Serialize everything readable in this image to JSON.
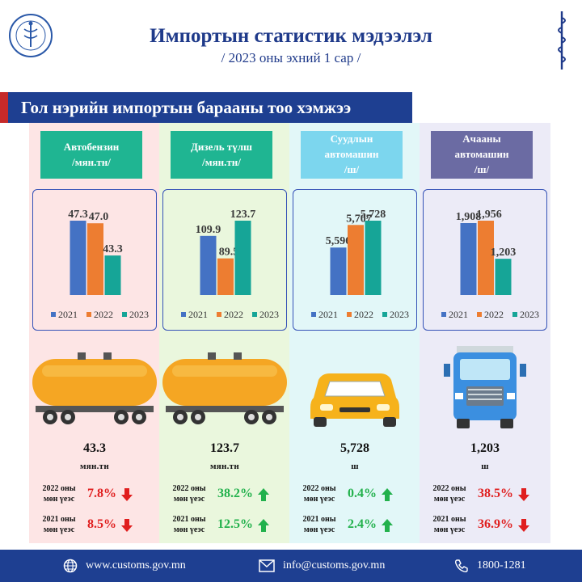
{
  "header": {
    "title": "Импортын статистик мэдээлэл",
    "subtitle": "/ 2023 оны эхний 1 сар /"
  },
  "section_title": "Гол нэрийн импортын барааны тоо хэмжээ",
  "chart_data": [
    {
      "type": "bar",
      "title": "Автобензин /мян.тн/",
      "categories": [
        "2021",
        "2022",
        "2023"
      ],
      "values": [
        47.3,
        47.0,
        43.3
      ],
      "value_labels": [
        "47.3",
        "47.0",
        "43.3"
      ],
      "colors": [
        "#4472c4",
        "#ed7d31",
        "#16a597"
      ],
      "legend": [
        "2021",
        "2022",
        "2023"
      ],
      "legend_position": "bottom"
    },
    {
      "type": "bar",
      "title": "Дизель түлш /мян.тн/",
      "categories": [
        "2021",
        "2022",
        "2023"
      ],
      "values": [
        109.9,
        89.5,
        123.7
      ],
      "value_labels": [
        "109.9",
        "89.5",
        "123.7"
      ],
      "colors": [
        "#4472c4",
        "#ed7d31",
        "#16a597"
      ],
      "legend": [
        "2021",
        "2022",
        "2023"
      ],
      "legend_position": "bottom"
    },
    {
      "type": "bar",
      "title": "Суудлын автомашин /ш/",
      "categories": [
        "2021",
        "2022",
        "2023"
      ],
      "values": [
        5596,
        5707,
        5728
      ],
      "value_labels": [
        "5,596",
        "5,707",
        "5,728"
      ],
      "colors": [
        "#4472c4",
        "#ed7d31",
        "#16a597"
      ],
      "legend": [
        "2021",
        "2022",
        "2023"
      ],
      "legend_position": "bottom"
    },
    {
      "type": "bar",
      "title": "Ачааны автомашин /ш/",
      "categories": [
        "2021",
        "2022",
        "2023"
      ],
      "values": [
        1908,
        1956,
        1203
      ],
      "value_labels": [
        "1,908",
        "1,956",
        "1,203"
      ],
      "colors": [
        "#4472c4",
        "#ed7d31",
        "#16a597"
      ],
      "legend": [
        "2021",
        "2022",
        "2023"
      ],
      "legend_position": "bottom"
    }
  ],
  "products": [
    {
      "name_line1": "Автобензин",
      "name_line2": "/мян.тн/",
      "badge_color": "#1fb592",
      "vehicle_icon": "fuel-tanker-icon",
      "summary_value": "43.3",
      "summary_unit": "мян.тн",
      "cmp": [
        {
          "label_line1": "2022 оны",
          "label_line2": "мөн үеэс",
          "value": "7.8%",
          "direction": "down",
          "color": "#e01e1e"
        },
        {
          "label_line1": "2021 оны",
          "label_line2": "мөн үеэс",
          "value": "8.5%",
          "direction": "down",
          "color": "#e01e1e"
        }
      ]
    },
    {
      "name_line1": "Дизель түлш",
      "name_line2": "/мян.тн/",
      "badge_color": "#1fb592",
      "vehicle_icon": "fuel-tanker-icon",
      "summary_value": "123.7",
      "summary_unit": "мян.тн",
      "cmp": [
        {
          "label_line1": "2022 оны",
          "label_line2": "мөн үеэс",
          "value": "38.2%",
          "direction": "up",
          "color": "#22b14c"
        },
        {
          "label_line1": "2021 оны",
          "label_line2": "мөн үеэс",
          "value": "12.5%",
          "direction": "up",
          "color": "#22b14c"
        }
      ]
    },
    {
      "name_line1": "Суудлын",
      "name_line2": "автомашин",
      "name_line3": "/ш/",
      "badge_color": "#7cd6ee",
      "vehicle_icon": "car-icon",
      "summary_value": "5,728",
      "summary_unit": "ш",
      "cmp": [
        {
          "label_line1": "2022 оны",
          "label_line2": "мөн үеэс",
          "value": "0.4%",
          "direction": "up",
          "color": "#22b14c"
        },
        {
          "label_line1": "2021 оны",
          "label_line2": "мөн үеэс",
          "value": "2.4%",
          "direction": "up",
          "color": "#22b14c"
        }
      ]
    },
    {
      "name_line1": "Ачааны",
      "name_line2": "автомашин",
      "name_line3": "/ш/",
      "badge_color": "#6b6ba3",
      "vehicle_icon": "truck-icon",
      "summary_value": "1,203",
      "summary_unit": "ш",
      "cmp": [
        {
          "label_line1": "2022 оны",
          "label_line2": "мөн үеэс",
          "value": "38.5%",
          "direction": "down",
          "color": "#e01e1e"
        },
        {
          "label_line1": "2021 оны",
          "label_line2": "мөн үеэс",
          "value": "36.9%",
          "direction": "down",
          "color": "#e01e1e"
        }
      ]
    }
  ],
  "footer": {
    "website": "www.customs.gov.mn",
    "email": "info@customs.gov.mn",
    "phone": "1800-1281",
    "icons": [
      "globe-icon",
      "mail-icon",
      "phone-icon"
    ]
  },
  "colors": {
    "title_blue": "#1f3a8a",
    "banner_blue": "#1e3f91",
    "banner_accent": "#c62a2a",
    "up_green": "#22b14c",
    "down_red": "#e01e1e"
  }
}
